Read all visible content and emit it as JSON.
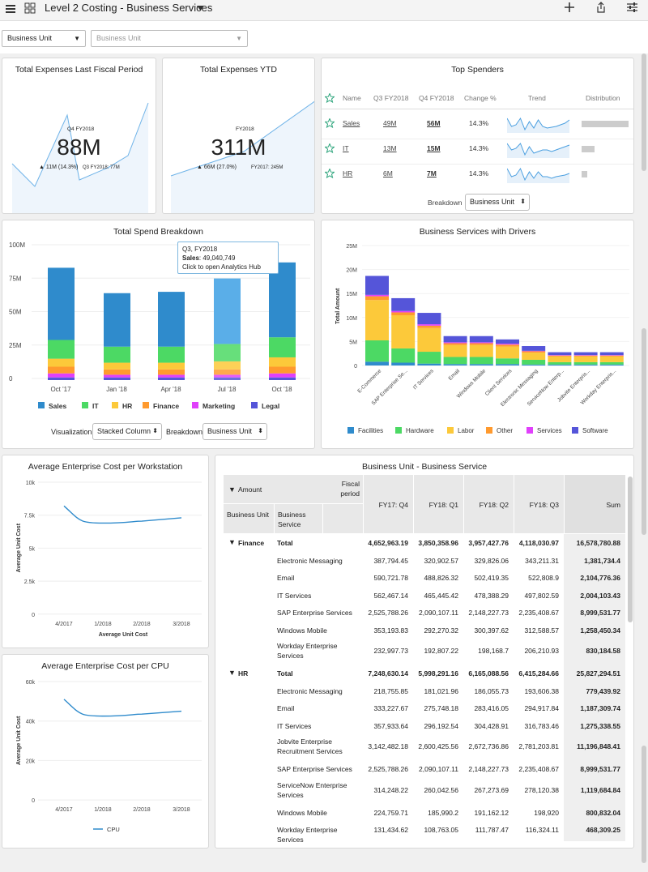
{
  "header": {
    "title": "Level 2 Costing - Business Services"
  },
  "filters": {
    "business_unit": "Business Unit",
    "business_unit_placeholder": "Business Unit"
  },
  "kpi1": {
    "title": "Total Expenses Last Fiscal Period",
    "period": "Q4 FY2018",
    "value": "88M",
    "change": "▲ 11M (14.3%)",
    "prior": "Q3 FY2018: 77M"
  },
  "kpi2": {
    "title": "Total Expenses YTD",
    "period": "FY2018",
    "value": "311M",
    "change": "▲ 66M (27.0%)",
    "prior": "FY2017: 245M"
  },
  "top": {
    "title": "Top Spenders",
    "headers": [
      "Name",
      "Q3 FY2018",
      "Q4 FY2018",
      "Change %",
      "Trend",
      "Distribution"
    ],
    "rows": [
      {
        "name": "Sales",
        "q3": "49M",
        "q4": "56M",
        "change": "14.3%",
        "dist": 1.0
      },
      {
        "name": "IT",
        "q3": "13M",
        "q4": "15M",
        "change": "14.3%",
        "dist": 0.27
      },
      {
        "name": "HR",
        "q3": "6M",
        "q4": "7M",
        "change": "14.3%",
        "dist": 0.12
      }
    ],
    "breakdown_label": "Breakdown",
    "breakdown_value": "Business Unit"
  },
  "spend": {
    "title": "Total Spend Breakdown",
    "tooltip": {
      "line1": "Q3, FY2018",
      "line2_label": "Sales",
      "line2_value": ": 49,040,749",
      "line3": "Click to open Analytics Hub"
    },
    "visualization_label": "Visualization",
    "visualization_value": "Stacked Column",
    "breakdown_label": "Breakdown",
    "breakdown_value": "Business Unit"
  },
  "drivers": {
    "title": "Business Services with Drivers"
  },
  "ws": {
    "title": "Average Enterprise Cost per Workstation"
  },
  "cpu": {
    "title": "Average Enterprise Cost per CPU"
  },
  "bu": {
    "title": "Business Unit - Business Service",
    "amount": "Amount",
    "fiscal": "Fiscal period",
    "col_bu": "Business Unit",
    "col_bs": "Business Service",
    "periods": [
      "FY17: Q4",
      "FY18: Q1",
      "FY18: Q2",
      "FY18: Q3",
      "Sum"
    ],
    "rows": [
      {
        "unit": "Finance",
        "svc": "Total",
        "v": [
          "4,652,963.19",
          "3,850,358.96",
          "3,957,427.76",
          "4,118,030.97",
          "16,578,780.88"
        ]
      },
      {
        "unit": "",
        "svc": "Electronic Messaging",
        "v": [
          "387,794.45",
          "320,902.57",
          "329,826.06",
          "343,211.31",
          "1,381,734.4"
        ]
      },
      {
        "unit": "",
        "svc": "Email",
        "v": [
          "590,721.78",
          "488,826.32",
          "502,419.35",
          "522,808.9",
          "2,104,776.36"
        ]
      },
      {
        "unit": "",
        "svc": "IT Services",
        "v": [
          "562,467.14",
          "465,445.42",
          "478,388.29",
          "497,802.59",
          "2,004,103.43"
        ]
      },
      {
        "unit": "",
        "svc": "SAP Enterprise Services",
        "v": [
          "2,525,788.26",
          "2,090,107.11",
          "2,148,227.73",
          "2,235,408.67",
          "8,999,531.77"
        ]
      },
      {
        "unit": "",
        "svc": "Windows Mobile",
        "v": [
          "353,193.83",
          "292,270.32",
          "300,397.62",
          "312,588.57",
          "1,258,450.34"
        ]
      },
      {
        "unit": "",
        "svc": "Workday Enterprise Services",
        "v": [
          "232,997.73",
          "192,807.22",
          "198,168.7",
          "206,210.93",
          "830,184.58"
        ]
      },
      {
        "unit": "HR",
        "svc": "Total",
        "v": [
          "7,248,630.14",
          "5,998,291.16",
          "6,165,088.56",
          "6,415,284.66",
          "25,827,294.51"
        ]
      },
      {
        "unit": "",
        "svc": "Electronic Messaging",
        "v": [
          "218,755.85",
          "181,021.96",
          "186,055.73",
          "193,606.38",
          "779,439.92"
        ]
      },
      {
        "unit": "",
        "svc": "Email",
        "v": [
          "333,227.67",
          "275,748.18",
          "283,416.05",
          "294,917.84",
          "1,187,309.74"
        ]
      },
      {
        "unit": "",
        "svc": "IT Services",
        "v": [
          "357,933.64",
          "296,192.54",
          "304,428.91",
          "316,783.46",
          "1,275,338.55"
        ]
      },
      {
        "unit": "",
        "svc": "Jobvite Enterprise Recruitment Services",
        "v": [
          "3,142,482.18",
          "2,600,425.56",
          "2,672,736.86",
          "2,781,203.81",
          "11,196,848.41"
        ]
      },
      {
        "unit": "",
        "svc": "SAP Enterprise Services",
        "v": [
          "2,525,788.26",
          "2,090,107.11",
          "2,148,227.73",
          "2,235,408.67",
          "8,999,531.77"
        ]
      },
      {
        "unit": "",
        "svc": "ServiceNow Enterprise Services",
        "v": [
          "314,248.22",
          "260,042.56",
          "267,273.69",
          "278,120.38",
          "1,119,684.84"
        ]
      },
      {
        "unit": "",
        "svc": "Windows Mobile",
        "v": [
          "224,759.71",
          "185,990.2",
          "191,162.12",
          "198,920",
          "800,832.04"
        ]
      },
      {
        "unit": "",
        "svc": "Workday Enterprise Services",
        "v": [
          "131,434.62",
          "108,763.05",
          "111,787.47",
          "116,324.11",
          "468,309.25"
        ]
      }
    ]
  },
  "colors": {
    "Sales": "#2f8bcc",
    "IT": "#4cd964",
    "HR": "#fcc93a",
    "Finance": "#ff9a2e",
    "Marketing": "#e040fb",
    "Legal": "#5555d9"
  },
  "chart_data": [
    {
      "type": "bar",
      "title": "Total Spend Breakdown",
      "categories": [
        "Oct '17",
        "Jan '18",
        "Apr '18",
        "Jul '18",
        "Oct '18"
      ],
      "series": [
        {
          "name": "Sales",
          "values": [
            54,
            40,
            41,
            49,
            56
          ]
        },
        {
          "name": "IT",
          "values": [
            14,
            12,
            12,
            13,
            15
          ]
        },
        {
          "name": "HR",
          "values": [
            6,
            5,
            5,
            6,
            7
          ]
        },
        {
          "name": "Finance",
          "values": [
            5,
            4,
            4,
            4,
            5
          ]
        },
        {
          "name": "Marketing",
          "values": [
            3,
            2,
            2,
            2,
            3
          ]
        },
        {
          "name": "Legal",
          "values": [
            2,
            2,
            2,
            2,
            2
          ]
        }
      ],
      "yticks": [
        "100M",
        "75M",
        "50M",
        "25M",
        "0"
      ],
      "ylim": [
        0,
        100
      ],
      "legend": "bottom"
    },
    {
      "type": "bar",
      "title": "Business Services with Drivers",
      "ylabel": "Total Amount",
      "categories": [
        "E-Commerce",
        "SAP Enterprise Se...",
        "IT Services",
        "Email",
        "Windows Mobile",
        "Client Services",
        "Electronic Messaging",
        "ServiceNow Enterp...",
        "Jobvite Enterpris...",
        "Workday Enterpris..."
      ],
      "series": [
        {
          "name": "Facilities",
          "values": [
            0.8,
            0.6,
            0.4,
            0.3,
            0.3,
            0.3,
            0.2,
            0.2,
            0.2,
            0.2
          ]
        },
        {
          "name": "Hardware",
          "values": [
            4.5,
            3,
            2.5,
            1.5,
            1.5,
            1.2,
            1,
            0.5,
            0.5,
            0.5
          ]
        },
        {
          "name": "Labor",
          "values": [
            8.5,
            7,
            5,
            2.5,
            2.5,
            2.5,
            1.5,
            1.2,
            1.2,
            1.2
          ]
        },
        {
          "name": "Other",
          "values": [
            0.8,
            0.6,
            0.5,
            0.4,
            0.4,
            0.4,
            0.3,
            0.2,
            0.2,
            0.2
          ]
        },
        {
          "name": "Services",
          "values": [
            0.3,
            0.3,
            0.3,
            0.2,
            0.2,
            0.2,
            0.1,
            0.1,
            0.1,
            0.1
          ]
        },
        {
          "name": "Software",
          "values": [
            4,
            2.7,
            2.4,
            1.3,
            1.3,
            0.9,
            1,
            0.6,
            0.6,
            0.6
          ]
        }
      ],
      "yticks": [
        "25M",
        "20M",
        "15M",
        "10M",
        "5M",
        "0"
      ],
      "ylim": [
        0,
        25
      ],
      "colors": [
        "#2f8bcc",
        "#4cd964",
        "#fcc93a",
        "#ff9a2e",
        "#e040fb",
        "#5555d9"
      ],
      "legend": "bottom"
    },
    {
      "type": "line",
      "title": "Average Enterprise Cost per Workstation",
      "x": [
        "4/2017",
        "1/2018",
        "2/2018",
        "3/2018"
      ],
      "y": [
        8200,
        6900,
        7050,
        7300
      ],
      "ylabel": "Average Unit Cost",
      "xlabel": "Average Unit Cost",
      "yticks": [
        "10k",
        "7.5k",
        "5k",
        "2.5k",
        "0"
      ],
      "ylim": [
        0,
        10000
      ]
    },
    {
      "type": "line",
      "title": "Average Enterprise Cost per CPU",
      "series": [
        {
          "name": "CPU",
          "values": [
            51000,
            42500,
            43500,
            45000
          ]
        }
      ],
      "x": [
        "4/2017",
        "1/2018",
        "2/2018",
        "3/2018"
      ],
      "ylabel": "Average Unit Cost",
      "yticks": [
        "60k",
        "40k",
        "20k",
        "0"
      ],
      "ylim": [
        0,
        60000
      ],
      "legend": "bottom"
    }
  ]
}
